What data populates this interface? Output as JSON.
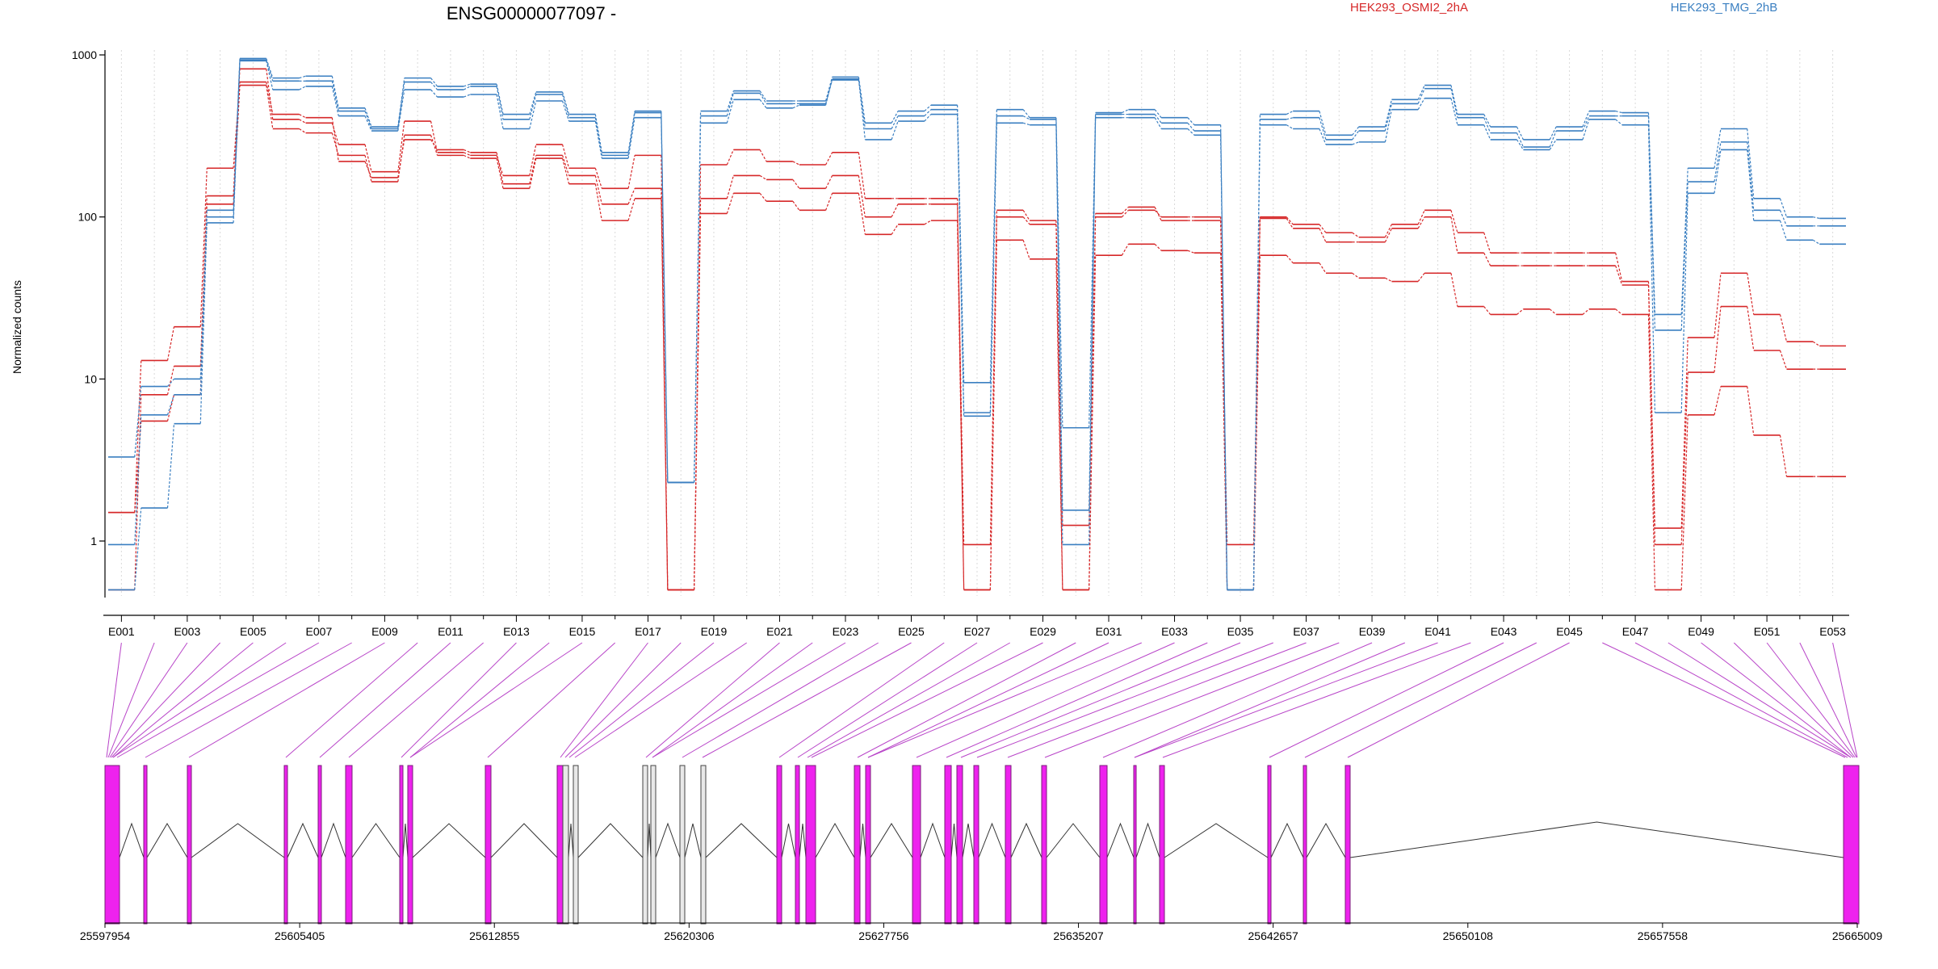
{
  "chart_data": {
    "type": "line",
    "title": "ENSG00000077097 -",
    "xlabel": "",
    "ylabel": "Normalized counts",
    "y_scale": "log",
    "ylim": [
      0.5,
      1000
    ],
    "y_ticks": [
      1,
      10,
      100,
      1000
    ],
    "y_tick_labels": [
      "1",
      "10",
      "100",
      "1000"
    ],
    "grid": "vertical dotted lines at each exon",
    "legend": {
      "placement": "top",
      "entries": [
        "HEK293_OSMI2_2hA",
        "HEK293_TMG_2hB"
      ]
    },
    "colors": {
      "HEK293_OSMI2_2hA": "#d62728",
      "HEK293_TMG_2hB": "#3a7fc1",
      "exon_fill": "#ee22ee",
      "connector": "#b844c8",
      "intron": "#000000"
    },
    "categories": [
      "E001",
      "E002",
      "E003",
      "E004",
      "E005",
      "E006",
      "E007",
      "E008",
      "E009",
      "E010",
      "E011",
      "E012",
      "E013",
      "E014",
      "E015",
      "E016",
      "E017",
      "E018",
      "E019",
      "E020",
      "E021",
      "E022",
      "E023",
      "E024",
      "E025",
      "E026",
      "E027",
      "E028",
      "E029",
      "E030",
      "E031",
      "E032",
      "E033",
      "E034",
      "E035",
      "E036",
      "E037",
      "E038",
      "E039",
      "E040",
      "E041",
      "E042",
      "E043",
      "E044",
      "E045",
      "E046",
      "E047",
      "E048",
      "E049",
      "E050",
      "E051",
      "E052",
      "E053"
    ],
    "x_tick_labels": [
      "E001",
      "E003",
      "E005",
      "E007",
      "E009",
      "E011",
      "E013",
      "E015",
      "E017",
      "E019",
      "E021",
      "E023",
      "E025",
      "E027",
      "E029",
      "E031",
      "E033",
      "E035",
      "E037",
      "E039",
      "E041",
      "E043",
      "E045",
      "E047",
      "E049",
      "E051",
      "E053"
    ],
    "series": [
      {
        "name": "HEK293_OSMI2_2hA",
        "group": "red",
        "values": [
          0.5,
          8,
          12,
          135,
          820,
          400,
          380,
          280,
          190,
          390,
          250,
          240,
          180,
          280,
          200,
          150,
          240,
          0.5,
          210,
          260,
          220,
          210,
          250,
          130,
          130,
          130,
          0.5,
          100,
          90,
          0.5,
          100,
          110,
          100,
          100,
          0.5,
          100,
          90,
          80,
          75,
          90,
          110,
          80,
          60,
          60,
          60,
          60,
          40,
          1.2,
          18,
          45,
          25,
          17,
          16
        ]
      },
      {
        "name": "HEK293_OSMI2_2hA",
        "group": "red",
        "values": [
          1.5,
          13,
          21,
          200,
          680,
          430,
          410,
          220,
          175,
          300,
          260,
          250,
          160,
          240,
          180,
          120,
          150,
          0.5,
          130,
          180,
          170,
          150,
          180,
          100,
          120,
          120,
          0.95,
          110,
          95,
          1.25,
          105,
          115,
          95,
          95,
          0.95,
          98,
          85,
          70,
          70,
          85,
          100,
          60,
          50,
          50,
          50,
          50,
          38,
          0.95,
          11,
          28,
          15,
          11.5,
          11.5
        ]
      },
      {
        "name": "HEK293_OSMI2_2hA",
        "group": "red",
        "values": [
          1.5,
          5.5,
          8,
          120,
          650,
          350,
          330,
          240,
          165,
          320,
          240,
          230,
          150,
          230,
          160,
          95,
          130,
          0.5,
          105,
          140,
          125,
          110,
          140,
          78,
          90,
          95,
          0.5,
          72,
          55,
          0.5,
          58,
          68,
          62,
          60,
          0.5,
          58,
          52,
          45,
          42,
          40,
          45,
          28,
          25,
          27,
          25,
          27,
          25,
          0.5,
          6,
          9,
          4.5,
          2.5,
          2.5
        ]
      },
      {
        "name": "HEK293_TMG_2hB",
        "group": "blue",
        "values": [
          3.3,
          9,
          10,
          110,
          950,
          720,
          740,
          470,
          360,
          720,
          640,
          660,
          430,
          590,
          430,
          250,
          450,
          2.3,
          450,
          600,
          520,
          520,
          730,
          380,
          450,
          490,
          9.5,
          460,
          410,
          5,
          440,
          460,
          410,
          370,
          0.5,
          430,
          450,
          320,
          360,
          530,
          650,
          430,
          360,
          300,
          360,
          450,
          440,
          25,
          200,
          350,
          130,
          100,
          98
        ]
      },
      {
        "name": "HEK293_TMG_2hB",
        "group": "blue",
        "values": [
          0.95,
          6,
          8,
          100,
          930,
          690,
          690,
          450,
          350,
          680,
          610,
          640,
          400,
          570,
          410,
          240,
          440,
          2.3,
          420,
          580,
          500,
          500,
          700,
          350,
          420,
          460,
          6.2,
          420,
          400,
          1.55,
          430,
          430,
          380,
          340,
          0.5,
          400,
          410,
          300,
          340,
          500,
          620,
          410,
          330,
          270,
          340,
          420,
          420,
          20,
          165,
          290,
          110,
          88,
          88
        ]
      },
      {
        "name": "HEK293_TMG_2hB",
        "group": "blue",
        "values": [
          0.5,
          1.6,
          5.3,
          92,
          920,
          610,
          640,
          420,
          340,
          610,
          550,
          570,
          350,
          520,
          390,
          230,
          410,
          2.3,
          380,
          530,
          470,
          490,
          710,
          300,
          390,
          430,
          5.9,
          380,
          370,
          0.95,
          410,
          410,
          350,
          320,
          0.5,
          370,
          350,
          280,
          290,
          460,
          540,
          370,
          300,
          260,
          300,
          400,
          370,
          6.2,
          140,
          260,
          95,
          72,
          68
        ]
      }
    ],
    "genomic_axis": {
      "tick_labels": [
        "25597954",
        "25605405",
        "25612855",
        "25620306",
        "25627756",
        "25635207",
        "25642657",
        "25650108",
        "25657558",
        "25665009"
      ],
      "start": 25597954,
      "end": 25665009
    }
  }
}
